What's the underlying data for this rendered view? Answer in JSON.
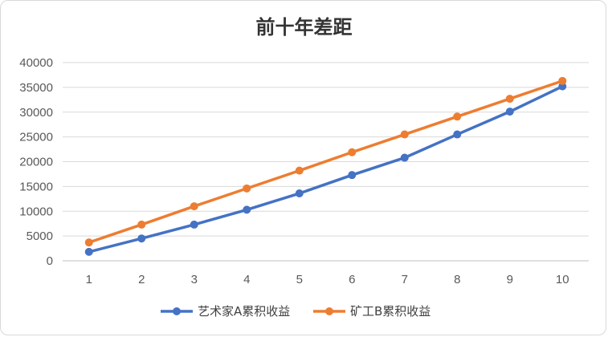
{
  "chart_data": {
    "type": "line",
    "title": "前十年差距",
    "xlabel": "",
    "ylabel": "",
    "categories": [
      "1",
      "2",
      "3",
      "4",
      "5",
      "6",
      "7",
      "8",
      "9",
      "10"
    ],
    "ylim": [
      0,
      40000
    ],
    "yticks": [
      0,
      5000,
      10000,
      15000,
      20000,
      25000,
      30000,
      35000,
      40000
    ],
    "grid": true,
    "legend_position": "bottom",
    "series": [
      {
        "name": "艺术家A累积收益",
        "color": "#4472C4",
        "values": [
          1800,
          4500,
          7300,
          10300,
          13600,
          17300,
          20800,
          25500,
          30100,
          35200
        ]
      },
      {
        "name": "矿工B累积收益",
        "color": "#ED7D31",
        "values": [
          3700,
          7300,
          11000,
          14600,
          18200,
          21900,
          25500,
          29100,
          32700,
          36300
        ]
      }
    ]
  }
}
